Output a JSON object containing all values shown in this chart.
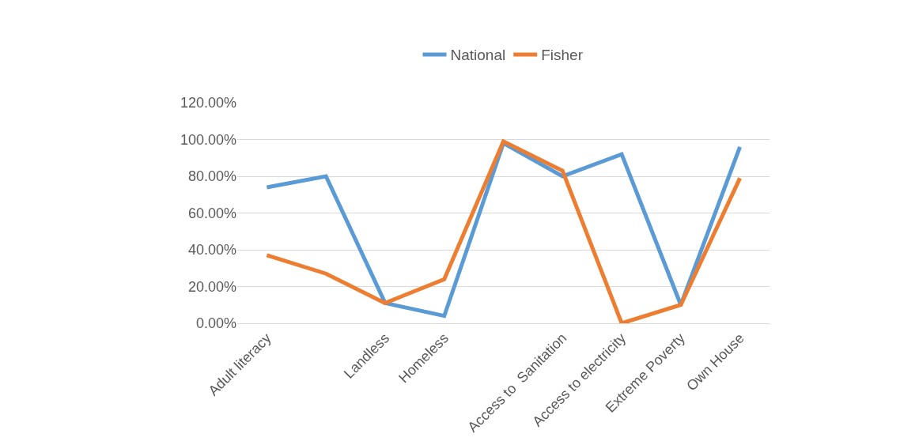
{
  "chart_data": {
    "type": "line",
    "categories": [
      "Adult literacy",
      null,
      "Landless",
      "Homeless",
      null,
      "Access to  Sanitation",
      "Access to electricity",
      "Extreme Poverty",
      "Own House"
    ],
    "series": [
      {
        "name": "National",
        "color": "#5b9bd5",
        "values": [
          74,
          80,
          11,
          4,
          98,
          80,
          92,
          10,
          96
        ]
      },
      {
        "name": "Fisher",
        "color": "#ed7d31",
        "values": [
          37,
          27,
          11,
          24,
          99,
          83,
          0,
          10,
          79
        ]
      }
    ],
    "ylim": [
      0,
      120
    ],
    "yticks": [
      {
        "value": 0,
        "label": "0.00%"
      },
      {
        "value": 20,
        "label": "20.00%"
      },
      {
        "value": 40,
        "label": "40.00%"
      },
      {
        "value": 60,
        "label": "60.00%"
      },
      {
        "value": 80,
        "label": "80.00%"
      },
      {
        "value": 100,
        "label": "100.00%"
      },
      {
        "value": 120,
        "label": "120.00%"
      }
    ],
    "grid": "y",
    "legend": "top",
    "marker": "none",
    "line_style": "solid"
  }
}
